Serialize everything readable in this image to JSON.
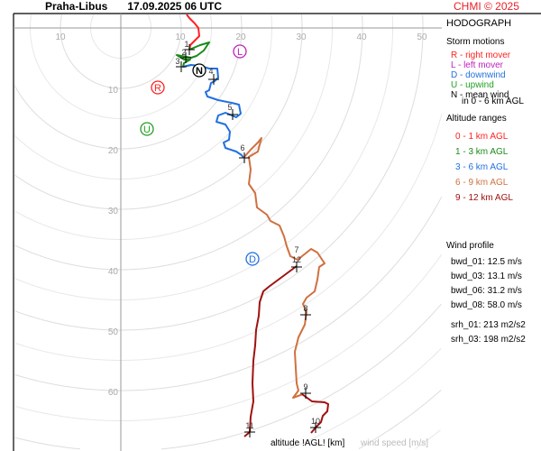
{
  "header": {
    "station": "Praha-Libus",
    "datetime": "17.09.2025 06 UTC",
    "copyright": "CHMI © 2025"
  },
  "legend": {
    "title": "HODOGRAPH",
    "storm_title": "Storm motions",
    "storm": [
      {
        "text": "R - right mover",
        "color": "#ff2020"
      },
      {
        "text": "L - left mover",
        "color": "#c020c0"
      },
      {
        "text": "D - downwind",
        "color": "#2070e0"
      },
      {
        "text": "U - upwind",
        "color": "#20a020"
      },
      {
        "text": "N - mean wind",
        "color": "#000000"
      }
    ],
    "storm_note": "in 0 - 6 km AGL",
    "alt_title": "Altitude ranges",
    "alt": [
      {
        "text": "0 - 1 km AGL",
        "color": "#ff2020"
      },
      {
        "text": "1 - 3 km AGL",
        "color": "#1a8a1a"
      },
      {
        "text": "3 - 6 km AGL",
        "color": "#2070e0"
      },
      {
        "text": "6 - 9 km AGL",
        "color": "#d07040"
      },
      {
        "text": "9 - 12 km AGL",
        "color": "#a01010"
      }
    ],
    "profile_title": "Wind profile",
    "profile": [
      "bwd_01: 12.5 m/s",
      "bwd_03: 13.1 m/s",
      "bwd_06: 31.2 m/s",
      "bwd_08: 58.0 m/s",
      "srh_01: 213 m2/s2",
      "srh_03: 198 m2/s2"
    ]
  },
  "axes": {
    "x_ticks": [
      "10",
      "10",
      "20",
      "30",
      "40",
      "50"
    ],
    "y_ticks": [
      "10",
      "20",
      "30",
      "40",
      "50",
      "60"
    ],
    "xlabel": "altitude !AGL! [km]",
    "ylabel": "wind speed [m/s]"
  },
  "markers": {
    "altitudes": [
      "1",
      "2",
      "3",
      "4",
      "5",
      "6",
      "7",
      "8",
      "9",
      "10",
      "11",
      "12"
    ],
    "storm_letters": [
      "R",
      "L",
      "D",
      "U",
      "N"
    ]
  }
}
